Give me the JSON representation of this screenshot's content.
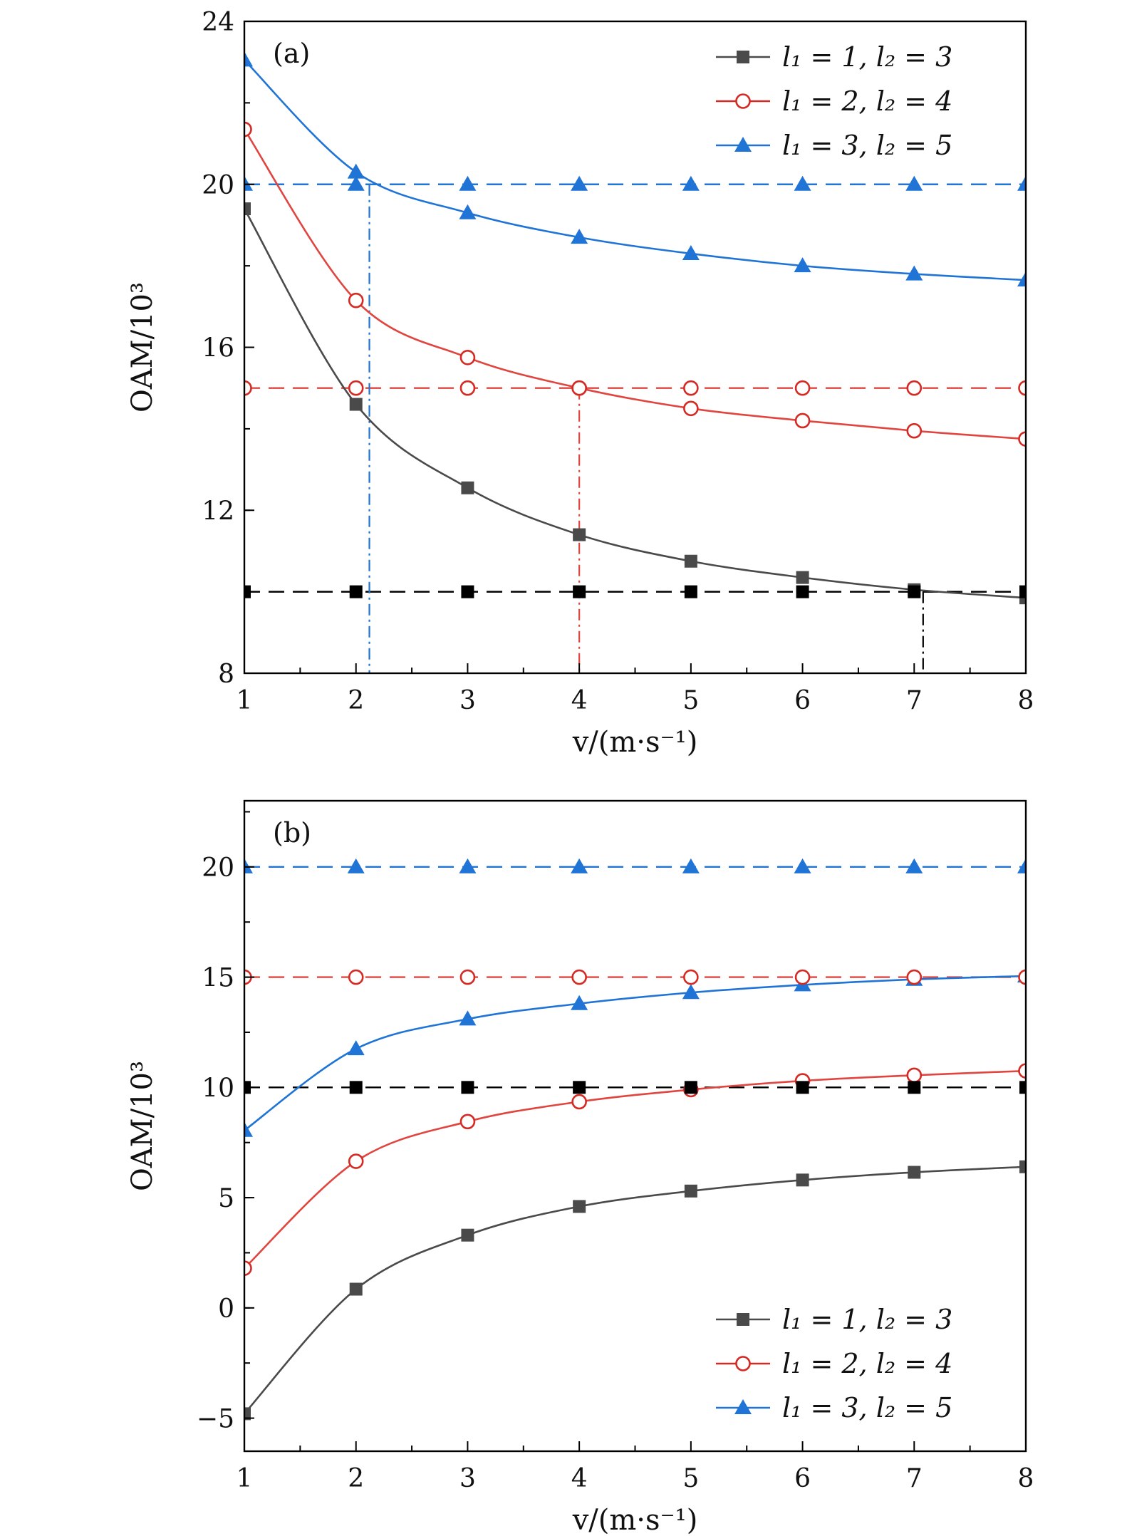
{
  "figure": {
    "colors": {
      "black": "#4a4a4a",
      "black_ref": "#000000",
      "red": "#e0453f",
      "red_marker": "#d42a23",
      "blue": "#1f74d6",
      "axis": "#000000"
    }
  },
  "chart_data": [
    {
      "type": "line",
      "panel": "(a)",
      "xlabel": "v/(m·s⁻¹)",
      "ylabel": "OAM/10³",
      "xlim": [
        1,
        8
      ],
      "ylim": [
        8,
        24
      ],
      "xticks": [
        "1",
        "2",
        "3",
        "4",
        "5",
        "6",
        "7",
        "8"
      ],
      "yticks": [
        "8",
        "12",
        "16",
        "20",
        "24"
      ],
      "legend_position": "top-right",
      "legend": [
        "l₁ = 1,  l₂ = 3",
        "l₁ = 2,  l₂ = 4",
        "l₁ = 3,  l₂ = 5"
      ],
      "x": [
        1,
        2,
        3,
        4,
        5,
        6,
        7,
        8
      ],
      "series": [
        {
          "name": "l₁ = 1,  l₂ = 3",
          "color": "black",
          "marker": "square",
          "style": "solid",
          "values": [
            19.4,
            14.6,
            12.55,
            11.4,
            10.75,
            10.35,
            10.05,
            9.85
          ]
        },
        {
          "name": "l₁ = 2,  l₂ = 4",
          "color": "red",
          "marker": "circle-open",
          "style": "solid",
          "values": [
            21.35,
            17.15,
            15.75,
            15.0,
            14.5,
            14.2,
            13.95,
            13.75
          ]
        },
        {
          "name": "l₁ = 3,  l₂ = 5",
          "color": "blue",
          "marker": "triangle",
          "style": "solid",
          "values": [
            23.05,
            20.3,
            19.3,
            18.7,
            18.3,
            18.0,
            17.8,
            17.65
          ]
        },
        {
          "color": "black_ref",
          "marker": "square",
          "style": "dashed",
          "values": [
            10,
            10,
            10,
            10,
            10,
            10,
            10,
            10
          ]
        },
        {
          "color": "red",
          "marker": "circle-open",
          "style": "dashed",
          "values": [
            15,
            15,
            15,
            15,
            15,
            15,
            15,
            15
          ]
        },
        {
          "color": "blue",
          "marker": "triangle",
          "style": "dashed",
          "values": [
            20,
            20,
            20,
            20,
            20,
            20,
            20,
            20
          ]
        }
      ],
      "intersections": [
        {
          "color": "blue",
          "x": 2.12,
          "y": 20
        },
        {
          "color": "red",
          "x": 4.0,
          "y": 15
        },
        {
          "color": "black_ref",
          "x": 7.08,
          "y": 10
        }
      ]
    },
    {
      "type": "line",
      "panel": "(b)",
      "xlabel": "v/(m·s⁻¹)",
      "ylabel": "OAM/10³",
      "xlim": [
        1,
        8
      ],
      "ylim": [
        -6.5,
        23
      ],
      "xticks": [
        "1",
        "2",
        "3",
        "4",
        "5",
        "6",
        "7",
        "8"
      ],
      "yticks": [
        "−5",
        "0",
        "5",
        "10",
        "15",
        "20"
      ],
      "ytick_values": [
        -5,
        0,
        5,
        10,
        15,
        20
      ],
      "legend_position": "bottom-right",
      "legend": [
        "l₁ = 1,  l₂ = 3",
        "l₁ = 2,  l₂ = 4",
        "l₁ = 3,  l₂ = 5"
      ],
      "x": [
        1,
        2,
        3,
        4,
        5,
        6,
        7,
        8
      ],
      "series": [
        {
          "name": "l₁ = 1,  l₂ = 3",
          "color": "black",
          "marker": "square",
          "style": "solid",
          "values": [
            -4.8,
            0.85,
            3.3,
            4.6,
            5.3,
            5.8,
            6.15,
            6.4
          ]
        },
        {
          "name": "l₁ = 2,  l₂ = 4",
          "color": "red",
          "marker": "circle-open",
          "style": "solid",
          "values": [
            1.8,
            6.65,
            8.45,
            9.35,
            9.9,
            10.3,
            10.55,
            10.75
          ]
        },
        {
          "name": "l₁ = 3,  l₂ = 5",
          "color": "blue",
          "marker": "triangle",
          "style": "solid",
          "values": [
            8.05,
            11.75,
            13.1,
            13.8,
            14.3,
            14.65,
            14.9,
            15.05
          ]
        },
        {
          "color": "black_ref",
          "marker": "square",
          "style": "dashed",
          "values": [
            10,
            10,
            10,
            10,
            10,
            10,
            10,
            10
          ]
        },
        {
          "color": "red",
          "marker": "circle-open",
          "style": "dashed",
          "values": [
            15,
            15,
            15,
            15,
            15,
            15,
            15,
            15
          ]
        },
        {
          "color": "blue",
          "marker": "triangle",
          "style": "dashed",
          "values": [
            20,
            20,
            20,
            20,
            20,
            20,
            20,
            20
          ]
        }
      ]
    }
  ]
}
